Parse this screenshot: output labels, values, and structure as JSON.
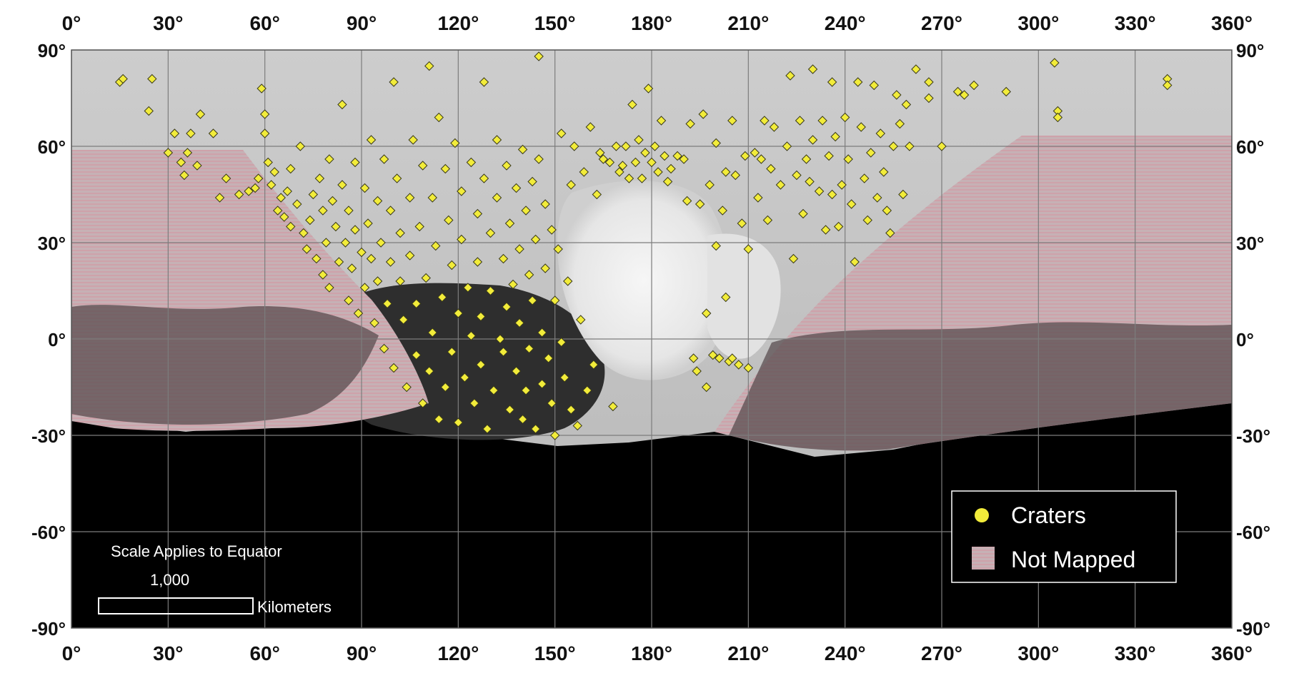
{
  "map": {
    "lon_ticks": [
      "0°",
      "30°",
      "60°",
      "90°",
      "120°",
      "150°",
      "180°",
      "210°",
      "240°",
      "270°",
      "300°",
      "330°",
      "360°"
    ],
    "lat_ticks": [
      "90°",
      "60°",
      "30°",
      "0°",
      "-30°",
      "-60°",
      "-90°"
    ],
    "lon_range": [
      0,
      360
    ],
    "lat_range": [
      -90,
      90
    ],
    "grid": true,
    "colors": {
      "crater_fill": "#f2ec3a",
      "crater_stroke": "#3a3a1a",
      "not_mapped": "#b59aa0",
      "no_data": "#000000",
      "surface_light": "#d9d9d9",
      "surface_dark": "#3a3a3a",
      "grid": "#7d7d7d"
    }
  },
  "legend": {
    "items": [
      {
        "label": "Craters",
        "symbol": "yellow-circle"
      },
      {
        "label": "Not Mapped",
        "symbol": "pink-swatch"
      }
    ],
    "placement": "bottom-right"
  },
  "scale": {
    "title": "Scale Applies to Equator",
    "value": "1,000",
    "unit": "Kilometers"
  },
  "chart_data": {
    "type": "scatter",
    "series": [
      {
        "name": "Craters",
        "points": [
          [
            15,
            80
          ],
          [
            16,
            81
          ],
          [
            25,
            81
          ],
          [
            24,
            71
          ],
          [
            30,
            58
          ],
          [
            32,
            64
          ],
          [
            34,
            55
          ],
          [
            35,
            51
          ],
          [
            36,
            58
          ],
          [
            37,
            64
          ],
          [
            39,
            54
          ],
          [
            40,
            70
          ],
          [
            44,
            64
          ],
          [
            46,
            44
          ],
          [
            48,
            50
          ],
          [
            52,
            45
          ],
          [
            55,
            46
          ],
          [
            57,
            47
          ],
          [
            58,
            50
          ],
          [
            59,
            78
          ],
          [
            60,
            70
          ],
          [
            60,
            64
          ],
          [
            61,
            55
          ],
          [
            62,
            48
          ],
          [
            63,
            52
          ],
          [
            64,
            40
          ],
          [
            65,
            44
          ],
          [
            66,
            38
          ],
          [
            67,
            46
          ],
          [
            68,
            53
          ],
          [
            68,
            35
          ],
          [
            70,
            42
          ],
          [
            71,
            60
          ],
          [
            72,
            33
          ],
          [
            73,
            28
          ],
          [
            74,
            37
          ],
          [
            75,
            45
          ],
          [
            76,
            25
          ],
          [
            77,
            50
          ],
          [
            78,
            40
          ],
          [
            78,
            20
          ],
          [
            79,
            30
          ],
          [
            80,
            56
          ],
          [
            80,
            16
          ],
          [
            81,
            43
          ],
          [
            82,
            35
          ],
          [
            83,
            24
          ],
          [
            84,
            73
          ],
          [
            84,
            48
          ],
          [
            85,
            30
          ],
          [
            86,
            40
          ],
          [
            86,
            12
          ],
          [
            87,
            22
          ],
          [
            88,
            55
          ],
          [
            88,
            34
          ],
          [
            89,
            8
          ],
          [
            90,
            27
          ],
          [
            91,
            47
          ],
          [
            91,
            16
          ],
          [
            92,
            36
          ],
          [
            93,
            62
          ],
          [
            93,
            25
          ],
          [
            94,
            5
          ],
          [
            95,
            43
          ],
          [
            95,
            18
          ],
          [
            96,
            30
          ],
          [
            97,
            56
          ],
          [
            97,
            -3
          ],
          [
            98,
            11
          ],
          [
            99,
            40
          ],
          [
            99,
            24
          ],
          [
            100,
            80
          ],
          [
            100,
            -9
          ],
          [
            101,
            50
          ],
          [
            102,
            18
          ],
          [
            102,
            33
          ],
          [
            103,
            6
          ],
          [
            104,
            -15
          ],
          [
            105,
            44
          ],
          [
            105,
            26
          ],
          [
            106,
            62
          ],
          [
            107,
            -5
          ],
          [
            107,
            11
          ],
          [
            108,
            35
          ],
          [
            109,
            54
          ],
          [
            109,
            -20
          ],
          [
            110,
            19
          ],
          [
            111,
            85
          ],
          [
            111,
            -10
          ],
          [
            112,
            44
          ],
          [
            112,
            2
          ],
          [
            113,
            29
          ],
          [
            114,
            69
          ],
          [
            114,
            -25
          ],
          [
            115,
            13
          ],
          [
            116,
            53
          ],
          [
            116,
            -15
          ],
          [
            117,
            37
          ],
          [
            118,
            -4
          ],
          [
            118,
            23
          ],
          [
            119,
            61
          ],
          [
            120,
            8
          ],
          [
            120,
            -26
          ],
          [
            121,
            46
          ],
          [
            121,
            31
          ],
          [
            122,
            -12
          ],
          [
            123,
            16
          ],
          [
            124,
            55
          ],
          [
            124,
            1
          ],
          [
            125,
            -20
          ],
          [
            126,
            39
          ],
          [
            126,
            24
          ],
          [
            127,
            7
          ],
          [
            127,
            -8
          ],
          [
            128,
            80
          ],
          [
            128,
            50
          ],
          [
            129,
            -28
          ],
          [
            130,
            33
          ],
          [
            130,
            15
          ],
          [
            131,
            -16
          ],
          [
            132,
            44
          ],
          [
            132,
            62
          ],
          [
            133,
            0
          ],
          [
            134,
            25
          ],
          [
            134,
            -4
          ],
          [
            135,
            54
          ],
          [
            135,
            10
          ],
          [
            136,
            36
          ],
          [
            136,
            -22
          ],
          [
            137,
            17
          ],
          [
            138,
            47
          ],
          [
            138,
            -10
          ],
          [
            139,
            28
          ],
          [
            139,
            5
          ],
          [
            140,
            59
          ],
          [
            140,
            -25
          ],
          [
            141,
            40
          ],
          [
            141,
            -16
          ],
          [
            142,
            20
          ],
          [
            142,
            -3
          ],
          [
            143,
            49
          ],
          [
            143,
            12
          ],
          [
            144,
            31
          ],
          [
            144,
            -28
          ],
          [
            145,
            88
          ],
          [
            145,
            56
          ],
          [
            146,
            2
          ],
          [
            146,
            -14
          ],
          [
            147,
            42
          ],
          [
            147,
            22
          ],
          [
            148,
            -6
          ],
          [
            149,
            34
          ],
          [
            149,
            -20
          ],
          [
            150,
            12
          ],
          [
            150,
            -30
          ],
          [
            151,
            28
          ],
          [
            152,
            -1
          ],
          [
            152,
            64
          ],
          [
            153,
            -12
          ],
          [
            154,
            18
          ],
          [
            155,
            48
          ],
          [
            155,
            -22
          ],
          [
            156,
            60
          ],
          [
            157,
            -27
          ],
          [
            158,
            6
          ],
          [
            159,
            52
          ],
          [
            160,
            -16
          ],
          [
            161,
            66
          ],
          [
            162,
            -8
          ],
          [
            163,
            45
          ],
          [
            164,
            58
          ],
          [
            165,
            56
          ],
          [
            167,
            55
          ],
          [
            168,
            -21
          ],
          [
            169,
            60
          ],
          [
            170,
            52
          ],
          [
            171,
            54
          ],
          [
            172,
            60
          ],
          [
            173,
            50
          ],
          [
            174,
            73
          ],
          [
            175,
            55
          ],
          [
            176,
            62
          ],
          [
            177,
            50
          ],
          [
            178,
            58
          ],
          [
            179,
            78
          ],
          [
            180,
            55
          ],
          [
            181,
            60
          ],
          [
            182,
            52
          ],
          [
            183,
            68
          ],
          [
            184,
            57
          ],
          [
            185,
            49
          ],
          [
            186,
            53
          ],
          [
            188,
            57
          ],
          [
            190,
            56
          ],
          [
            191,
            43
          ],
          [
            192,
            67
          ],
          [
            193,
            -6
          ],
          [
            194,
            -10
          ],
          [
            195,
            42
          ],
          [
            196,
            70
          ],
          [
            197,
            8
          ],
          [
            197,
            -15
          ],
          [
            198,
            48
          ],
          [
            199,
            -5
          ],
          [
            200,
            61
          ],
          [
            200,
            29
          ],
          [
            201,
            -6
          ],
          [
            202,
            40
          ],
          [
            203,
            52
          ],
          [
            203,
            13
          ],
          [
            204,
            -7
          ],
          [
            205,
            68
          ],
          [
            205,
            -6
          ],
          [
            206,
            51
          ],
          [
            207,
            -8
          ],
          [
            208,
            36
          ],
          [
            209,
            57
          ],
          [
            210,
            -9
          ],
          [
            210,
            28
          ],
          [
            212,
            58
          ],
          [
            213,
            44
          ],
          [
            214,
            56
          ],
          [
            215,
            68
          ],
          [
            216,
            37
          ],
          [
            217,
            53
          ],
          [
            218,
            66
          ],
          [
            220,
            48
          ],
          [
            222,
            60
          ],
          [
            223,
            82
          ],
          [
            224,
            25
          ],
          [
            225,
            51
          ],
          [
            226,
            68
          ],
          [
            227,
            39
          ],
          [
            228,
            56
          ],
          [
            229,
            49
          ],
          [
            230,
            84
          ],
          [
            230,
            62
          ],
          [
            232,
            46
          ],
          [
            233,
            68
          ],
          [
            234,
            34
          ],
          [
            235,
            57
          ],
          [
            236,
            80
          ],
          [
            236,
            45
          ],
          [
            237,
            63
          ],
          [
            238,
            35
          ],
          [
            239,
            48
          ],
          [
            240,
            69
          ],
          [
            241,
            56
          ],
          [
            242,
            42
          ],
          [
            243,
            24
          ],
          [
            244,
            80
          ],
          [
            245,
            66
          ],
          [
            246,
            50
          ],
          [
            247,
            37
          ],
          [
            248,
            58
          ],
          [
            249,
            79
          ],
          [
            250,
            44
          ],
          [
            251,
            64
          ],
          [
            252,
            52
          ],
          [
            253,
            40
          ],
          [
            254,
            33
          ],
          [
            255,
            60
          ],
          [
            256,
            76
          ],
          [
            257,
            67
          ],
          [
            258,
            45
          ],
          [
            259,
            73
          ],
          [
            260,
            60
          ],
          [
            262,
            84
          ],
          [
            266,
            80
          ],
          [
            266,
            75
          ],
          [
            270,
            60
          ],
          [
            275,
            77
          ],
          [
            277,
            76
          ],
          [
            280,
            79
          ],
          [
            290,
            77
          ],
          [
            305,
            86
          ],
          [
            306,
            71
          ],
          [
            306,
            69
          ],
          [
            340,
            81
          ],
          [
            340,
            79
          ]
        ]
      }
    ],
    "xlabel": "",
    "ylabel": "",
    "xlim": [
      0,
      360
    ],
    "ylim": [
      -90,
      90
    ]
  }
}
